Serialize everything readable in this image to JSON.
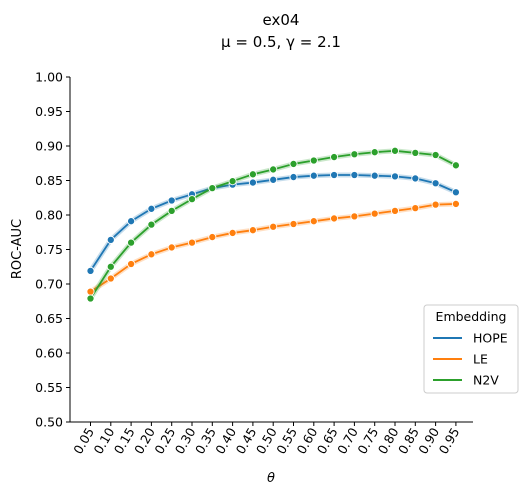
{
  "chart_data": {
    "type": "line",
    "title": "ex04",
    "subtitle": "μ = 0.5, γ = 2.1",
    "xlabel": "θ",
    "ylabel": "ROC-AUC",
    "categories": [
      "0.05",
      "0.10",
      "0.15",
      "0.20",
      "0.25",
      "0.30",
      "0.35",
      "0.40",
      "0.45",
      "0.50",
      "0.55",
      "0.60",
      "0.65",
      "0.70",
      "0.75",
      "0.80",
      "0.85",
      "0.90",
      "0.95"
    ],
    "ylim": [
      0.5,
      1.0
    ],
    "yticks": [
      "0.50",
      "0.55",
      "0.60",
      "0.65",
      "0.70",
      "0.75",
      "0.80",
      "0.85",
      "0.90",
      "0.95",
      "1.00"
    ],
    "grid": false,
    "legend": {
      "title": "Embedding",
      "placement": "lower-right"
    },
    "series": [
      {
        "name": "HOPE",
        "color": "#1f77b4",
        "values": [
          0.719,
          0.764,
          0.791,
          0.809,
          0.821,
          0.83,
          0.839,
          0.844,
          0.847,
          0.851,
          0.855,
          0.857,
          0.858,
          0.858,
          0.857,
          0.856,
          0.853,
          0.846,
          0.833
        ]
      },
      {
        "name": "LE",
        "color": "#ff7f0e",
        "values": [
          0.689,
          0.708,
          0.729,
          0.743,
          0.753,
          0.76,
          0.768,
          0.774,
          0.778,
          0.783,
          0.787,
          0.791,
          0.795,
          0.798,
          0.802,
          0.806,
          0.81,
          0.815,
          0.816
        ]
      },
      {
        "name": "N2V",
        "color": "#2ca02c",
        "values": [
          0.679,
          0.725,
          0.76,
          0.786,
          0.806,
          0.823,
          0.839,
          0.849,
          0.859,
          0.866,
          0.874,
          0.879,
          0.884,
          0.888,
          0.891,
          0.893,
          0.89,
          0.887,
          0.872
        ]
      }
    ]
  }
}
